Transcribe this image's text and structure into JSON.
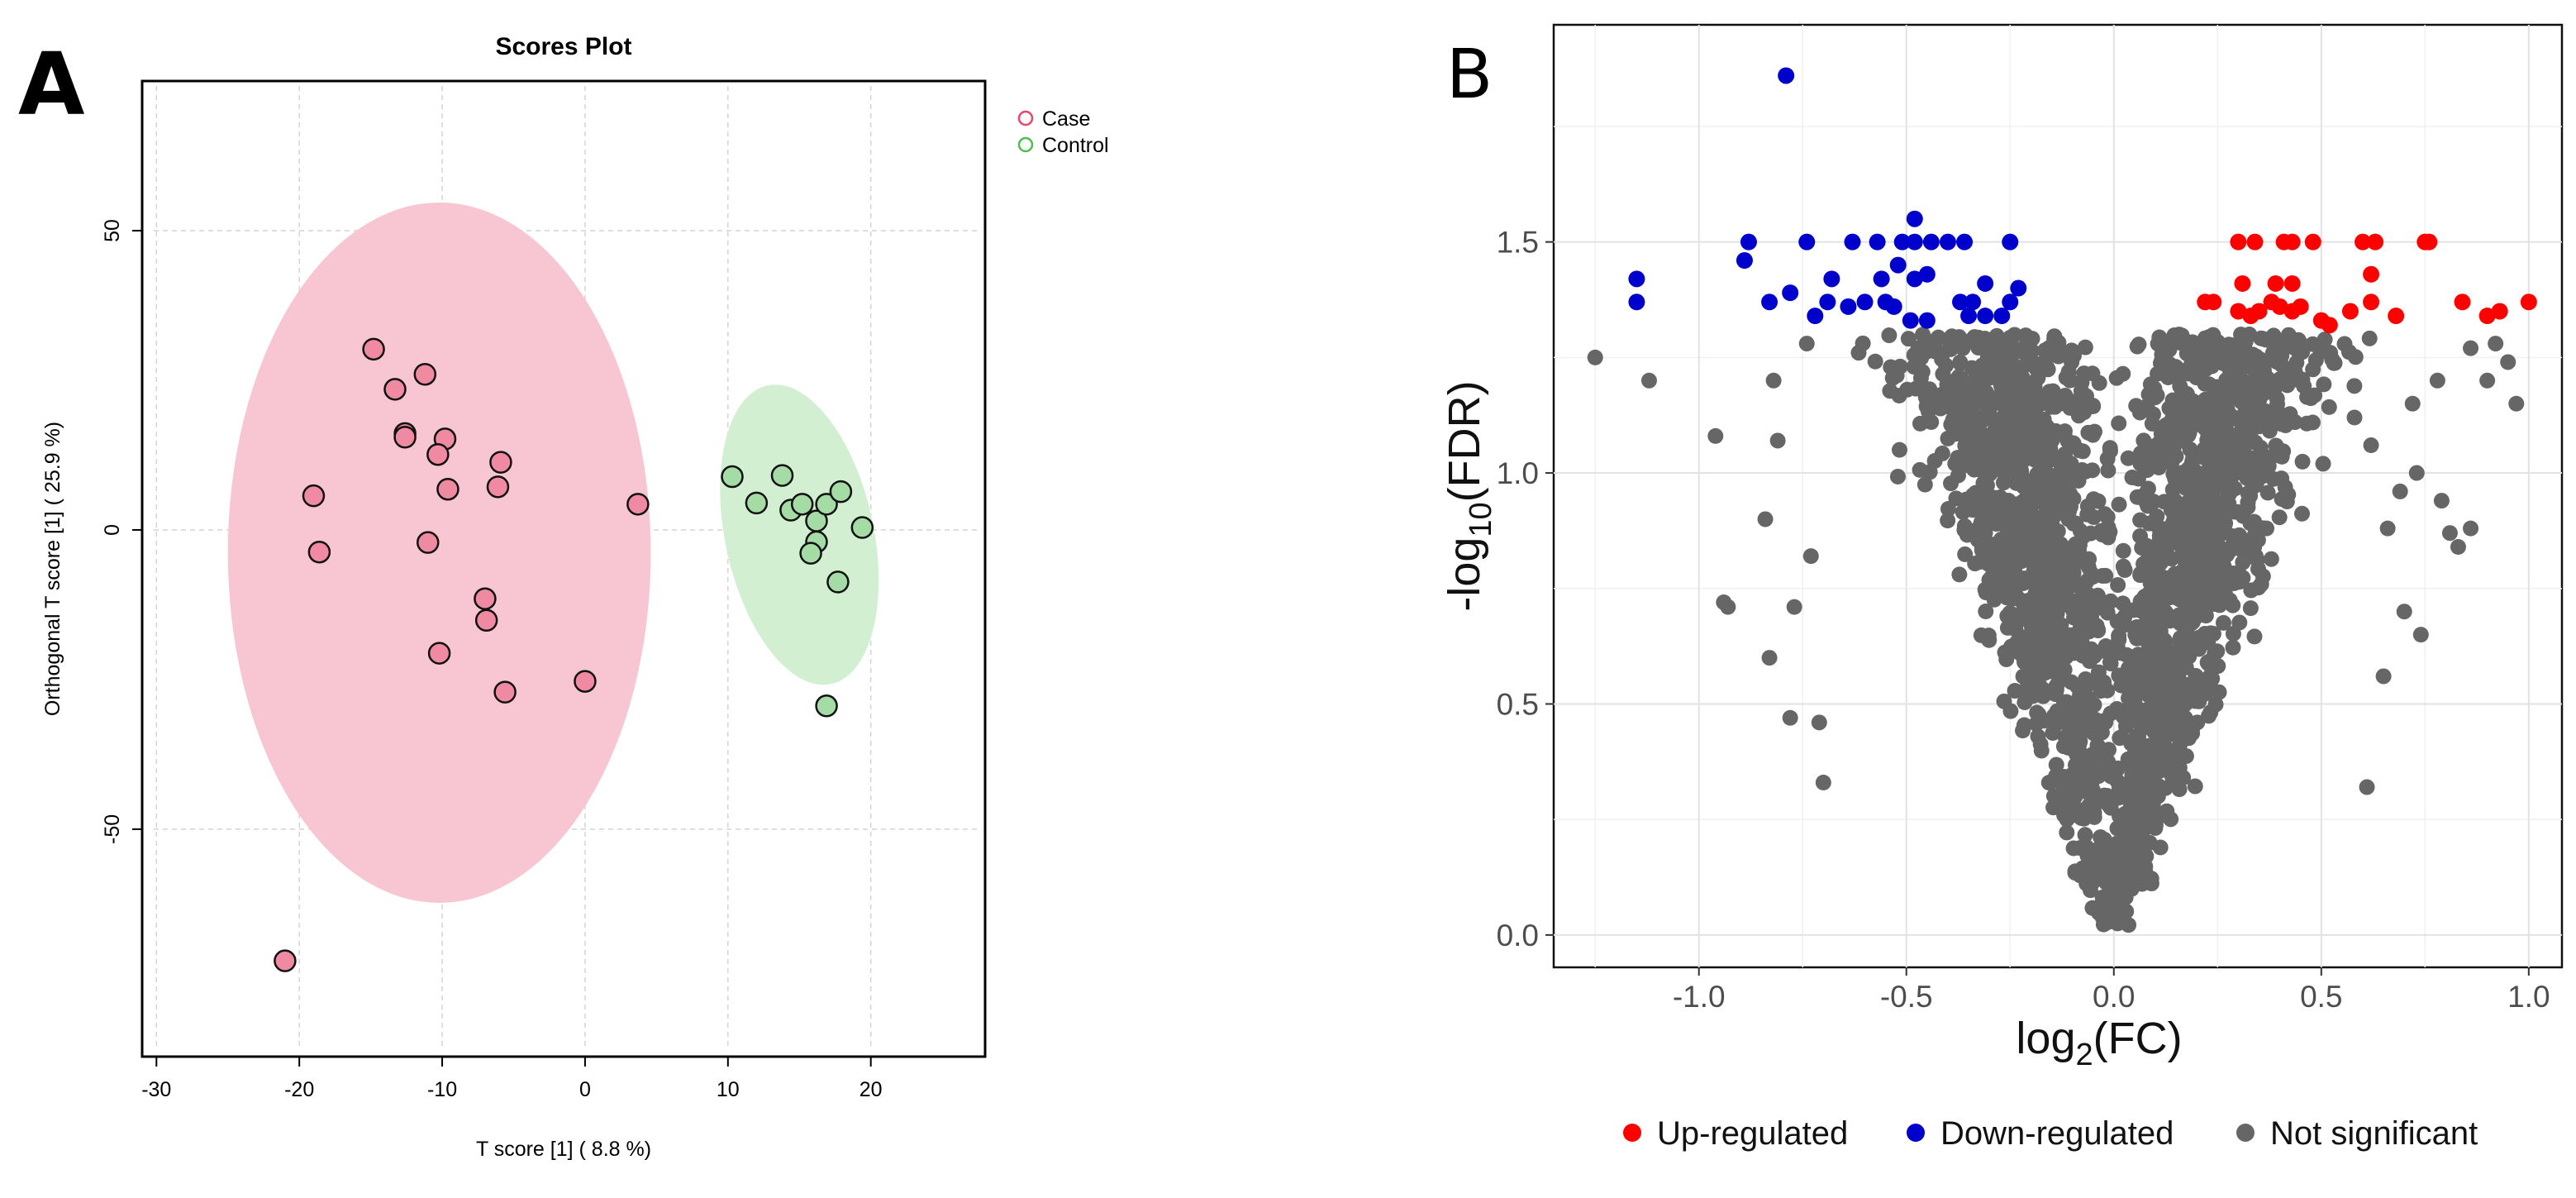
{
  "panels": {
    "a": {
      "letter": "A"
    },
    "b": {
      "letter": "B"
    }
  },
  "chart_data": [
    {
      "type": "scatter",
      "title": "Scores Plot",
      "xlabel": "T score [1] ( 8.8 %)",
      "ylabel": "Orthogonal T score [1] ( 25.9 %)",
      "xlim": [
        -31,
        28
      ],
      "ylim": [
        -88,
        75
      ],
      "xticks": [
        -30,
        -20,
        -10,
        0,
        10,
        20
      ],
      "xtick_labels": [
        "-30",
        "-20",
        "-10",
        "0",
        "10",
        "20"
      ],
      "yticks": [
        -50,
        0,
        50
      ],
      "ytick_labels": [
        "-50",
        "0",
        "50"
      ],
      "grid": true,
      "legend_position": "top-right",
      "series": [
        {
          "name": "Case",
          "color": "#e8476b",
          "fill": "#f08aa2",
          "ellipse": {
            "center": [
              -10.2,
              -3.8
            ],
            "semi_axes": [
              14.8,
              58.5
            ],
            "fill": "#f7c6d2"
          },
          "points": [
            [
              -14.8,
              30.2
            ],
            [
              -13.3,
              23.5
            ],
            [
              -11.2,
              26.0
            ],
            [
              -12.6,
              16.1
            ],
            [
              -12.6,
              15.5
            ],
            [
              -9.8,
              15.2
            ],
            [
              -10.3,
              12.6
            ],
            [
              -5.9,
              11.3
            ],
            [
              -6.1,
              7.2
            ],
            [
              -9.6,
              6.8
            ],
            [
              -19.0,
              5.7
            ],
            [
              -18.6,
              -3.7
            ],
            [
              -11.0,
              -2.1
            ],
            [
              -7.0,
              -11.5
            ],
            [
              -6.9,
              -15.1
            ],
            [
              -10.2,
              -20.6
            ],
            [
              -5.6,
              -27.1
            ],
            [
              0.0,
              -25.3
            ],
            [
              3.7,
              4.3
            ],
            [
              -21.0,
              -72.0
            ]
          ]
        },
        {
          "name": "Control",
          "color": "#4cbf4c",
          "fill": "#a5dca5",
          "ellipse": {
            "center": [
              15.0,
              -0.8
            ],
            "semi_axes": [
              5.2,
              25.5
            ],
            "fill": "#d2efd2",
            "angle": 12
          },
          "points": [
            [
              10.3,
              8.9
            ],
            [
              12.0,
              4.5
            ],
            [
              13.8,
              9.1
            ],
            [
              14.4,
              3.3
            ],
            [
              15.2,
              4.3
            ],
            [
              16.2,
              1.5
            ],
            [
              16.2,
              -2.0
            ],
            [
              15.8,
              -3.9
            ],
            [
              16.9,
              4.3
            ],
            [
              17.9,
              6.4
            ],
            [
              19.4,
              0.4
            ],
            [
              17.7,
              -8.7
            ],
            [
              16.9,
              -29.4
            ]
          ]
        }
      ]
    },
    {
      "type": "scatter",
      "title": "",
      "xlabel": "log2(FC)",
      "xlabel_parts": {
        "base": "log",
        "sub": "2",
        "arg": "(FC)"
      },
      "ylabel": "-log10(FDR)",
      "ylabel_parts": {
        "base": "-log",
        "sub": "10",
        "arg": "(FDR)"
      },
      "xlim": [
        -1.35,
        1.08
      ],
      "ylim": [
        -0.07,
        1.97
      ],
      "xticks": [
        -1.0,
        -0.5,
        0.0,
        0.5,
        1.0
      ],
      "xtick_labels": [
        "-1.0",
        "-0.5",
        "0.0",
        "0.5",
        "1.0"
      ],
      "yticks": [
        0.0,
        0.5,
        1.0,
        1.5
      ],
      "ytick_labels": [
        "0.0",
        "0.5",
        "1.0",
        "1.5"
      ],
      "grid": true,
      "legend_position": "bottom",
      "legend": [
        {
          "label": "Up-regulated",
          "color": "#ff0000"
        },
        {
          "label": "Down-regulated",
          "color": "#0000cc"
        },
        {
          "label": "Not significant",
          "color": "#666666"
        }
      ],
      "series": [
        {
          "name": "Up-regulated",
          "color": "#ff0000",
          "points": [
            [
              0.3,
              1.5
            ],
            [
              0.34,
              1.5
            ],
            [
              0.41,
              1.5
            ],
            [
              0.43,
              1.5
            ],
            [
              0.48,
              1.5
            ],
            [
              0.6,
              1.5
            ],
            [
              0.63,
              1.5
            ],
            [
              0.75,
              1.5
            ],
            [
              0.76,
              1.5
            ],
            [
              0.31,
              1.41
            ],
            [
              0.39,
              1.41
            ],
            [
              0.43,
              1.41
            ],
            [
              0.62,
              1.43
            ],
            [
              0.22,
              1.37
            ],
            [
              0.24,
              1.37
            ],
            [
              0.3,
              1.35
            ],
            [
              0.33,
              1.34
            ],
            [
              0.35,
              1.35
            ],
            [
              0.38,
              1.37
            ],
            [
              0.4,
              1.36
            ],
            [
              0.43,
              1.35
            ],
            [
              0.45,
              1.36
            ],
            [
              0.5,
              1.33
            ],
            [
              0.52,
              1.32
            ],
            [
              0.57,
              1.35
            ],
            [
              0.62,
              1.37
            ],
            [
              0.68,
              1.34
            ],
            [
              0.84,
              1.37
            ],
            [
              0.9,
              1.34
            ],
            [
              0.93,
              1.35
            ],
            [
              1.0,
              1.37
            ]
          ]
        },
        {
          "name": "Down-regulated",
          "color": "#0000cc",
          "points": [
            [
              -0.79,
              1.86
            ],
            [
              -0.48,
              1.55
            ],
            [
              -0.88,
              1.5
            ],
            [
              -0.74,
              1.5
            ],
            [
              -0.63,
              1.5
            ],
            [
              -0.57,
              1.5
            ],
            [
              -0.51,
              1.5
            ],
            [
              -0.48,
              1.5
            ],
            [
              -0.44,
              1.5
            ],
            [
              -0.4,
              1.5
            ],
            [
              -0.36,
              1.5
            ],
            [
              -0.25,
              1.5
            ],
            [
              -0.89,
              1.46
            ],
            [
              -0.52,
              1.45
            ],
            [
              -1.15,
              1.42
            ],
            [
              -0.68,
              1.42
            ],
            [
              -0.56,
              1.42
            ],
            [
              -0.48,
              1.42
            ],
            [
              -0.45,
              1.43
            ],
            [
              -0.31,
              1.41
            ],
            [
              -1.15,
              1.37
            ],
            [
              -0.83,
              1.37
            ],
            [
              -0.78,
              1.39
            ],
            [
              -0.72,
              1.34
            ],
            [
              -0.69,
              1.37
            ],
            [
              -0.64,
              1.36
            ],
            [
              -0.6,
              1.37
            ],
            [
              -0.55,
              1.37
            ],
            [
              -0.53,
              1.36
            ],
            [
              -0.49,
              1.33
            ],
            [
              -0.45,
              1.33
            ],
            [
              -0.37,
              1.37
            ],
            [
              -0.35,
              1.34
            ],
            [
              -0.34,
              1.37
            ],
            [
              -0.31,
              1.34
            ],
            [
              -0.27,
              1.34
            ],
            [
              -0.25,
              1.37
            ],
            [
              -0.23,
              1.4
            ]
          ]
        },
        {
          "name": "Not significant",
          "color": "#666666",
          "count": 2100,
          "shape": "volcano",
          "outliers": [
            [
              -1.25,
              1.25
            ],
            [
              -1.12,
              1.2
            ],
            [
              -0.96,
              1.08
            ],
            [
              -0.94,
              0.72
            ],
            [
              -0.93,
              0.71
            ],
            [
              -0.84,
              0.9
            ],
            [
              -0.83,
              0.6
            ],
            [
              -0.78,
              0.47
            ],
            [
              -0.77,
              0.71
            ],
            [
              -0.71,
              0.46
            ],
            [
              -0.7,
              0.33
            ],
            [
              -0.82,
              1.2
            ],
            [
              -0.81,
              1.07
            ],
            [
              -0.74,
              1.28
            ],
            [
              -0.73,
              0.82
            ],
            [
              0.72,
              1.15
            ],
            [
              0.73,
              1.0
            ],
            [
              0.78,
              1.2
            ],
            [
              0.79,
              0.94
            ],
            [
              0.81,
              0.87
            ],
            [
              0.83,
              0.84
            ],
            [
              0.86,
              0.88
            ],
            [
              0.86,
              1.27
            ],
            [
              0.9,
              1.2
            ],
            [
              0.92,
              1.28
            ],
            [
              0.95,
              1.24
            ],
            [
              0.97,
              1.15
            ],
            [
              0.7,
              0.7
            ],
            [
              0.74,
              0.65
            ],
            [
              0.66,
              0.88
            ],
            [
              0.62,
              1.06
            ],
            [
              0.65,
              0.56
            ],
            [
              0.69,
              0.96
            ],
            [
              0.58,
              1.12
            ],
            [
              0.61,
              0.32
            ]
          ]
        }
      ]
    }
  ]
}
